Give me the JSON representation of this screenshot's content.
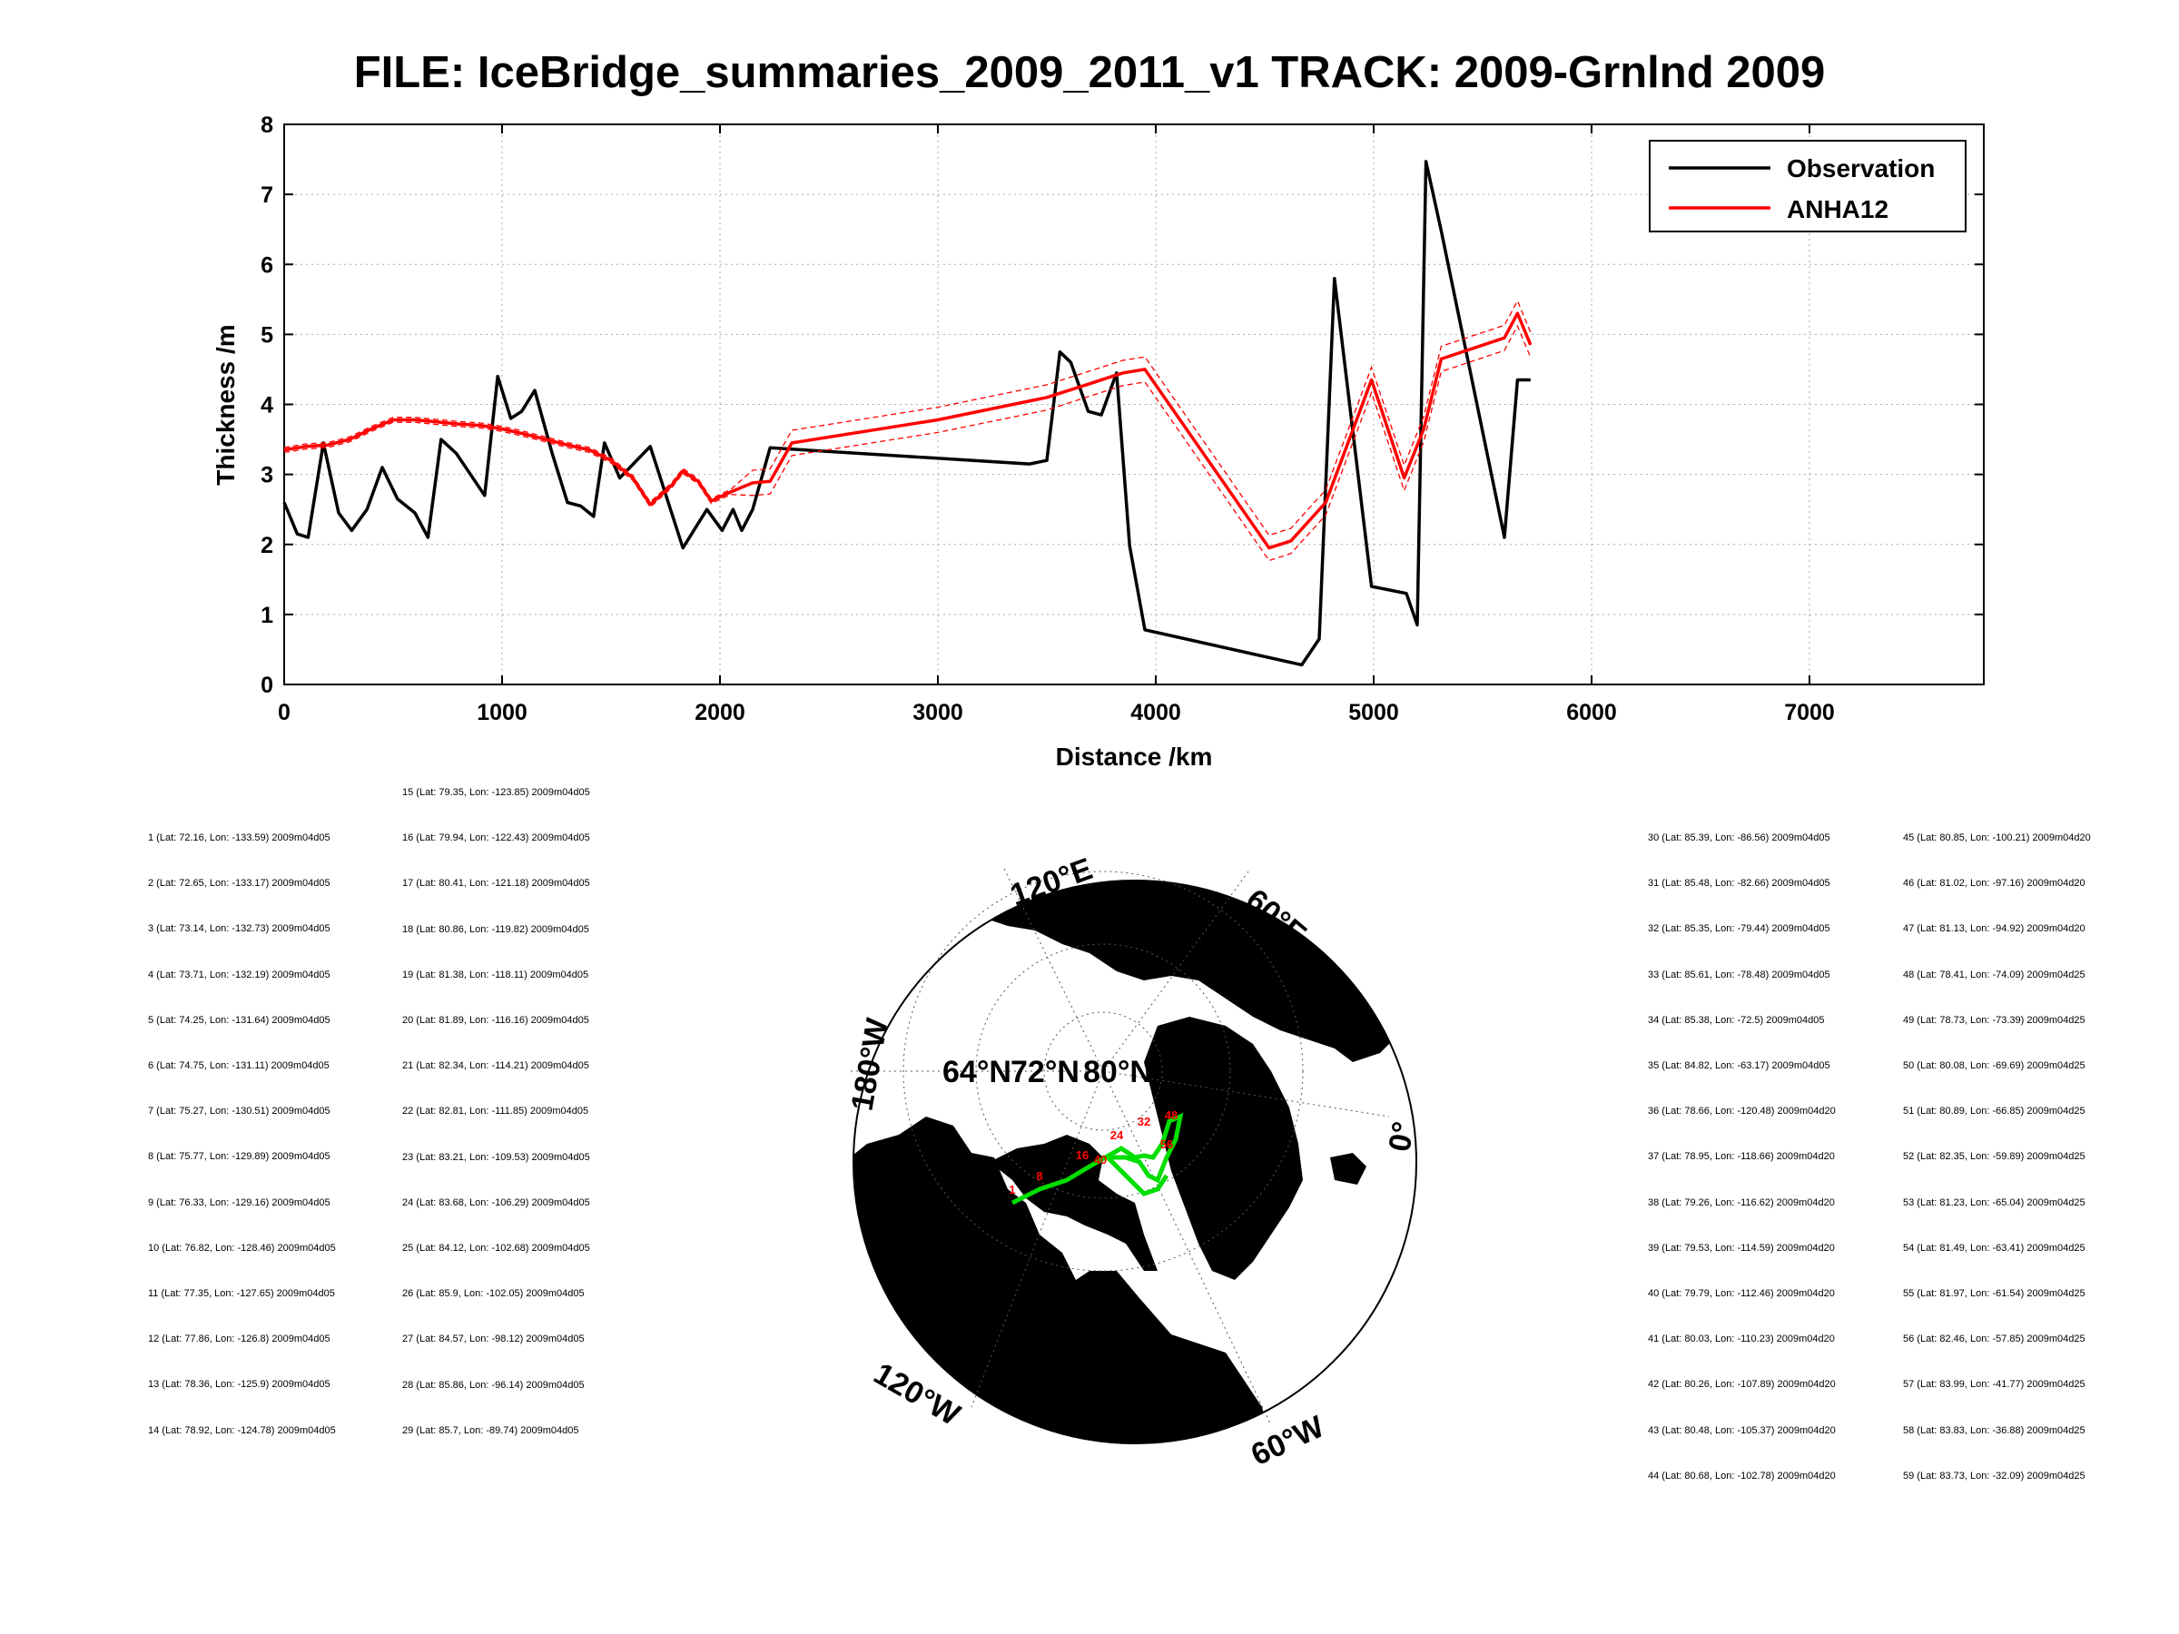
{
  "title": "FILE: IceBridge_summaries_2009_2011_v1 TRACK: 2009-Grnlnd 2009",
  "chart_data": {
    "type": "line",
    "xlabel": "Distance /km",
    "ylabel": "Thickness /m",
    "xlim": [
      0,
      7800
    ],
    "ylim": [
      0,
      8
    ],
    "xticks": [
      "0",
      "1000",
      "2000",
      "3000",
      "4000",
      "5000",
      "6000",
      "7000"
    ],
    "yticks": [
      "0",
      "1",
      "2",
      "3",
      "4",
      "5",
      "6",
      "7",
      "8"
    ],
    "grid": true,
    "legend_position": "top-right",
    "series": [
      {
        "name": "Observation",
        "color": "#000000",
        "x": [
          0,
          60,
          110,
          180,
          250,
          310,
          380,
          450,
          520,
          600,
          660,
          720,
          790,
          920,
          980,
          1040,
          1090,
          1150,
          1230,
          1300,
          1360,
          1420,
          1470,
          1540,
          1680,
          1830,
          1940,
          2010,
          2060,
          2100,
          2150,
          2230,
          3420,
          3500,
          3560,
          3610,
          3690,
          3750,
          3820,
          3880,
          3950,
          4670,
          4750,
          4820,
          4990,
          5150,
          5200,
          5240,
          5310,
          5600,
          5660,
          5720
        ],
        "y": [
          2.6,
          2.15,
          2.1,
          3.45,
          2.45,
          2.2,
          2.5,
          3.1,
          2.65,
          2.45,
          2.1,
          3.5,
          3.3,
          2.7,
          4.4,
          3.8,
          3.9,
          4.2,
          3.3,
          2.6,
          2.55,
          2.4,
          3.45,
          2.95,
          3.4,
          1.95,
          2.5,
          2.2,
          2.5,
          2.2,
          2.5,
          3.38,
          3.15,
          3.2,
          4.75,
          4.6,
          3.9,
          3.85,
          4.45,
          1.98,
          0.78,
          0.28,
          0.65,
          5.8,
          1.4,
          1.3,
          0.85,
          7.47,
          6.48,
          2.1,
          4.35,
          4.35
        ]
      },
      {
        "name": "ANHA12",
        "color": "#ff0000",
        "x": [
          0,
          100,
          200,
          300,
          400,
          500,
          600,
          700,
          800,
          900,
          1000,
          1100,
          1200,
          1300,
          1400,
          1500,
          1600,
          1680,
          1780,
          1830,
          1900,
          1960,
          2050,
          2150,
          2230,
          2330,
          3000,
          3500,
          3700,
          3800,
          3850,
          3950,
          4520,
          4620,
          4780,
          4990,
          5140,
          5230,
          5310,
          5600,
          5660,
          5720
        ],
        "y": [
          3.35,
          3.4,
          3.42,
          3.5,
          3.65,
          3.78,
          3.78,
          3.75,
          3.72,
          3.7,
          3.65,
          3.58,
          3.5,
          3.42,
          3.35,
          3.2,
          2.95,
          2.57,
          2.85,
          3.05,
          2.9,
          2.62,
          2.75,
          2.88,
          2.9,
          3.45,
          3.78,
          4.1,
          4.3,
          4.4,
          4.45,
          4.5,
          1.95,
          2.05,
          2.6,
          4.35,
          2.95,
          3.65,
          4.65,
          4.95,
          5.3,
          4.85
        ]
      }
    ]
  },
  "waypoints_left_a": [
    "1 (Lat: 72.16, Lon: -133.59) 2009m04d05",
    "2 (Lat: 72.65, Lon: -133.17) 2009m04d05",
    "3 (Lat: 73.14, Lon: -132.73) 2009m04d05",
    "4 (Lat: 73.71, Lon: -132.19) 2009m04d05",
    "5 (Lat: 74.25, Lon: -131.64) 2009m04d05",
    "6 (Lat: 74.75, Lon: -131.11) 2009m04d05",
    "7 (Lat: 75.27, Lon: -130.51) 2009m04d05",
    "8 (Lat: 75.77, Lon: -129.89) 2009m04d05",
    "9 (Lat: 76.33, Lon: -129.16) 2009m04d05",
    "10 (Lat: 76.82, Lon: -128.46) 2009m04d05",
    "11 (Lat: 77.35, Lon: -127.65) 2009m04d05",
    "12 (Lat: 77.86, Lon: -126.8) 2009m04d05",
    "13 (Lat: 78.36, Lon: -125.9) 2009m04d05",
    "14 (Lat: 78.92, Lon: -124.78) 2009m04d05"
  ],
  "waypoints_left_b": [
    "15 (Lat: 79.35, Lon: -123.85) 2009m04d05",
    "16 (Lat: 79.94, Lon: -122.43) 2009m04d05",
    "17 (Lat: 80.41, Lon: -121.18) 2009m04d05",
    "18 (Lat: 80.86, Lon: -119.82) 2009m04d05",
    "19 (Lat: 81.38, Lon: -118.11) 2009m04d05",
    "20 (Lat: 81.89, Lon: -116.16) 2009m04d05",
    "21 (Lat: 82.34, Lon: -114.21) 2009m04d05",
    "22 (Lat: 82.81, Lon: -111.85) 2009m04d05",
    "23 (Lat: 83.21, Lon: -109.53) 2009m04d05",
    "24 (Lat: 83.68, Lon: -106.29) 2009m04d05",
    "25 (Lat: 84.12, Lon: -102.68) 2009m04d05",
    "26 (Lat: 85.9, Lon: -102.05) 2009m04d05",
    "27 (Lat: 84.57, Lon: -98.12) 2009m04d05",
    "28 (Lat: 85.86, Lon: -96.14) 2009m04d05",
    "29 (Lat: 85.7, Lon: -89.74) 2009m04d05"
  ],
  "waypoints_right_a": [
    "30 (Lat: 85.39, Lon: -86.56) 2009m04d05",
    "31 (Lat: 85.48, Lon: -82.66) 2009m04d05",
    "32 (Lat: 85.35, Lon: -79.44) 2009m04d05",
    "33 (Lat: 85.61, Lon: -78.48) 2009m04d05",
    "34 (Lat: 85.38, Lon: -72.5) 2009m04d05",
    "35 (Lat: 84.82, Lon: -63.17) 2009m04d05",
    "36 (Lat: 78.66, Lon: -120.48) 2009m04d20",
    "37 (Lat: 78.95, Lon: -118.66) 2009m04d20",
    "38 (Lat: 79.26, Lon: -116.62) 2009m04d20",
    "39 (Lat: 79.53, Lon: -114.59) 2009m04d20",
    "40 (Lat: 79.79, Lon: -112.46) 2009m04d20",
    "41 (Lat: 80.03, Lon: -110.23) 2009m04d20",
    "42 (Lat: 80.26, Lon: -107.89) 2009m04d20",
    "43 (Lat: 80.48, Lon: -105.37) 2009m04d20",
    "44 (Lat: 80.68, Lon: -102.78) 2009m04d20"
  ],
  "waypoints_right_b": [
    "45 (Lat: 80.85, Lon: -100.21) 2009m04d20",
    "46 (Lat: 81.02, Lon: -97.16) 2009m04d20",
    "47 (Lat: 81.13, Lon: -94.92) 2009m04d20",
    "48 (Lat: 78.41, Lon: -74.09) 2009m04d25",
    "49 (Lat: 78.73, Lon: -73.39) 2009m04d25",
    "50 (Lat: 80.08, Lon: -69.69) 2009m04d25",
    "51 (Lat: 80.89, Lon: -66.85) 2009m04d25",
    "52 (Lat: 82.35, Lon: -59.89) 2009m04d25",
    "53 (Lat: 81.23, Lon: -65.04) 2009m04d25",
    "54 (Lat: 81.49, Lon: -63.41) 2009m04d25",
    "55 (Lat: 81.97, Lon: -61.54) 2009m04d25",
    "56 (Lat: 82.46, Lon: -57.85) 2009m04d25",
    "57 (Lat: 83.99, Lon: -41.77) 2009m04d25",
    "58 (Lat: 83.83, Lon: -36.88) 2009m04d25",
    "59 (Lat: 83.73, Lon: -32.09) 2009m04d25"
  ],
  "map": {
    "lon_labels": [
      "120°E",
      "60°E",
      "0°",
      "60°W",
      "120°W",
      "180°W"
    ],
    "lat_labels": [
      "64°N",
      "72°N",
      "80°N"
    ],
    "track_markers": [
      "1",
      "8",
      "16",
      "24",
      "32",
      "40",
      "48",
      "56"
    ],
    "track_color": "#00dd00",
    "marker_color": "#ff0000"
  }
}
